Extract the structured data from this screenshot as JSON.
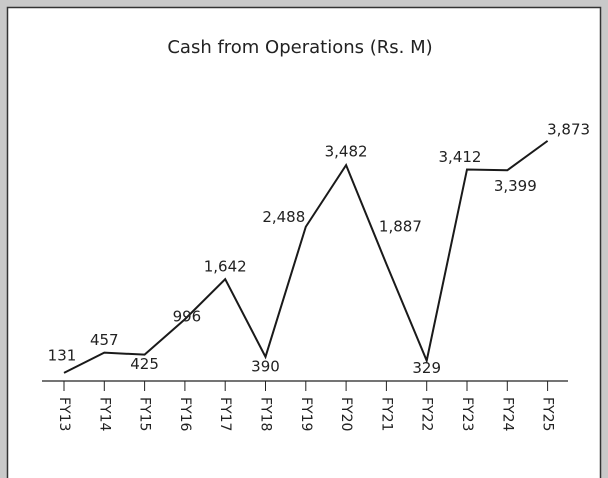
{
  "chart_data": {
    "type": "line",
    "title": "Cash from Operations (Rs. M)",
    "categories": [
      "FY13",
      "FY14",
      "FY15",
      "FY16",
      "FY17",
      "FY18",
      "FY19",
      "FY20",
      "FY21",
      "FY22",
      "FY23",
      "FY24",
      "FY25"
    ],
    "values": [
      131,
      457,
      425,
      996,
      1642,
      390,
      2488,
      3482,
      1887,
      329,
      3412,
      3399,
      3873
    ],
    "value_labels": [
      "131",
      "457",
      "425",
      "996",
      "1,642",
      "390",
      "2,488",
      "3,482",
      "1,887",
      "329",
      "3,412",
      "3,399",
      "3,873"
    ],
    "color": "#1a1a1a"
  }
}
